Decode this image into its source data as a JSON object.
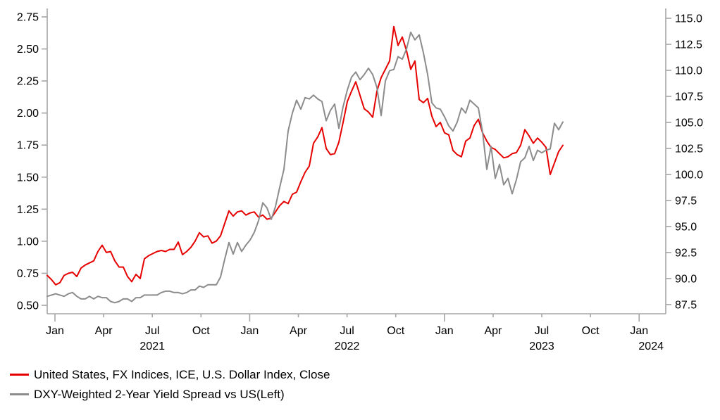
{
  "chart_data": {
    "type": "line",
    "title": "",
    "grid": false,
    "legend_position": "bottom-left",
    "x_axis": {
      "unit": "time (decimal years)",
      "range": [
        2020.9602,
        2024.1367
      ],
      "quarter_tick_labels": [
        "Jan",
        "Apr",
        "Jul",
        "Oct"
      ],
      "tick_years": [
        2021,
        2022,
        2023
      ],
      "end_tick_year": 2024,
      "year_labels": [
        "2021",
        "2022",
        "2023",
        "2024"
      ]
    },
    "left_axis": {
      "ticks": [
        "0.50",
        "0.75",
        "1.00",
        "1.25",
        "1.50",
        "1.75",
        "2.00",
        "2.25",
        "2.50",
        "2.75"
      ],
      "range": [
        0.4341,
        2.8159
      ]
    },
    "right_axis": {
      "ticks": [
        "87.5",
        "90.0",
        "92.5",
        "95.0",
        "97.5",
        "100.0",
        "102.5",
        "105.0",
        "107.5",
        "110.0",
        "112.5",
        "115.0"
      ],
      "range": [
        86.616,
        115.946
      ]
    },
    "series": [
      {
        "name": "United States, FX Indices, ICE, U.S. Dollar Index, Close",
        "axis": "right",
        "color": "#e60000",
        "x_start": 2020.9602,
        "x_step": 0.021708,
        "values": [
          90.3,
          89.9,
          89.4,
          89.6,
          90.3,
          90.5,
          90.6,
          90.2,
          91.0,
          91.3,
          91.5,
          91.7,
          92.6,
          93.2,
          92.5,
          92.6,
          91.7,
          91.1,
          91.1,
          90.2,
          89.7,
          90.4,
          90.0,
          91.9,
          92.2,
          92.4,
          92.6,
          92.7,
          92.6,
          92.8,
          92.8,
          93.5,
          92.3,
          92.6,
          93.0,
          93.6,
          94.4,
          94.0,
          94.1,
          93.4,
          93.6,
          94.1,
          95.3,
          96.5,
          96.0,
          96.4,
          96.5,
          96.1,
          96.3,
          96.4,
          95.9,
          96.1,
          95.7,
          95.8,
          96.4,
          97.0,
          97.4,
          97.2,
          98.1,
          98.3,
          99.3,
          100.2,
          100.8,
          103.0,
          103.6,
          104.5,
          102.5,
          101.9,
          102.0,
          103.1,
          105.0,
          107.0,
          108.0,
          108.9,
          107.6,
          106.3,
          106.0,
          105.5,
          108.0,
          109.3,
          110.1,
          110.9,
          114.2,
          112.4,
          113.2,
          111.9,
          110.1,
          110.9,
          107.2,
          106.9,
          107.3,
          105.6,
          104.6,
          105.0,
          104.0,
          103.8,
          102.3,
          101.9,
          101.7,
          103.2,
          103.5,
          104.7,
          105.3,
          104.0,
          103.2,
          102.6,
          102.4,
          102.0,
          101.6,
          101.7,
          102.0,
          102.1,
          102.8,
          104.3,
          103.7,
          103.0,
          103.5,
          103.1,
          102.6,
          100.0,
          101.1,
          102.2,
          102.8
        ]
      },
      {
        "name": "DXY-Weighted 2-Year Yield Spread vs US(Left)",
        "axis": "left",
        "color": "#8c8c8c",
        "x_start": 2020.9602,
        "x_step": 0.021708,
        "values": [
          0.57,
          0.58,
          0.59,
          0.58,
          0.57,
          0.59,
          0.6,
          0.57,
          0.55,
          0.55,
          0.57,
          0.55,
          0.57,
          0.56,
          0.56,
          0.53,
          0.52,
          0.53,
          0.55,
          0.55,
          0.53,
          0.56,
          0.56,
          0.58,
          0.58,
          0.58,
          0.58,
          0.6,
          0.61,
          0.61,
          0.6,
          0.6,
          0.59,
          0.6,
          0.62,
          0.62,
          0.65,
          0.64,
          0.66,
          0.66,
          0.66,
          0.72,
          0.86,
          0.99,
          0.9,
          0.99,
          0.92,
          0.97,
          1.01,
          1.07,
          1.16,
          1.3,
          1.26,
          1.17,
          1.27,
          1.42,
          1.56,
          1.86,
          2.0,
          2.1,
          2.03,
          2.12,
          2.11,
          2.14,
          2.11,
          2.09,
          1.94,
          2.02,
          2.07,
          1.88,
          2.05,
          2.18,
          2.28,
          2.32,
          2.26,
          2.3,
          2.35,
          2.3,
          2.2,
          1.98,
          2.25,
          2.33,
          2.34,
          2.44,
          2.42,
          2.5,
          2.63,
          2.57,
          2.61,
          2.47,
          2.3,
          2.08,
          2.04,
          2.03,
          1.97,
          1.9,
          1.86,
          1.93,
          2.04,
          2.0,
          2.1,
          2.07,
          2.04,
          1.85,
          1.56,
          1.74,
          1.49,
          1.6,
          1.44,
          1.49,
          1.37,
          1.48,
          1.62,
          1.65,
          1.74,
          1.63,
          1.71,
          1.69,
          1.71,
          1.72,
          1.92,
          1.87,
          1.93
        ]
      }
    ]
  },
  "legend": {
    "items": [
      {
        "label": "United States, FX Indices, ICE, U.S. Dollar Index, Close",
        "color": "#e60000"
      },
      {
        "label": "DXY-Weighted 2-Year Yield Spread vs US(Left)",
        "color": "#8c8c8c"
      }
    ]
  },
  "colors": {
    "axis": "#a6a6a6",
    "text": "#000000",
    "background": "#ffffff"
  }
}
